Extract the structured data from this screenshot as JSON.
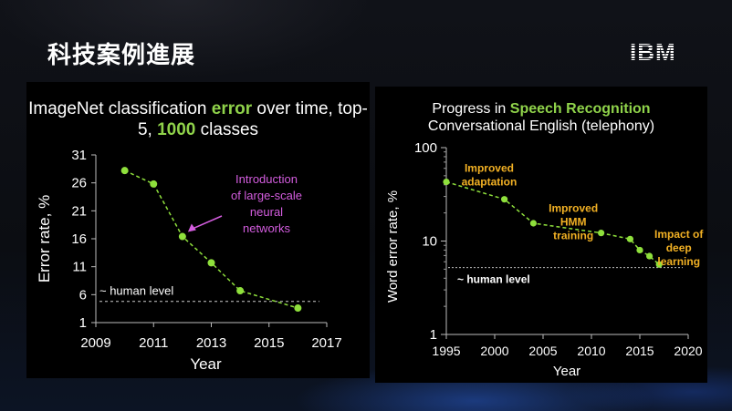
{
  "slide": {
    "title": "科技案例進展",
    "logo_text": "IBM"
  },
  "colors": {
    "series": "#8fe03c",
    "left_annotation": "#d45ddf",
    "right_annotation": "#f2b124",
    "highlight": "#8fd24a"
  },
  "chart_data": [
    {
      "type": "line",
      "title_parts": [
        "ImageNet classification ",
        "error",
        " over time, top-5, ",
        "1000",
        " classes"
      ],
      "xlabel": "Year",
      "ylabel": "Error rate, %",
      "xlim": [
        2009,
        2017
      ],
      "ylim": [
        1,
        31
      ],
      "xticks": [
        2009,
        2011,
        2013,
        2015,
        2017
      ],
      "yticks": [
        1,
        6,
        11,
        16,
        21,
        26,
        31
      ],
      "x": [
        2010,
        2011,
        2012,
        2013,
        2014,
        2016
      ],
      "y": [
        28.2,
        25.8,
        16.4,
        11.7,
        6.7,
        3.6
      ],
      "human_level": 4.8,
      "human_label": "~ human level",
      "annotation": "Introduction\nof large-scale\nneural\nnetworks",
      "annotation_target": [
        2012,
        16.4
      ]
    },
    {
      "type": "line",
      "title_plain": "Progress in ",
      "title_highlight": "Speech Recognition",
      "subtitle": "Conversational English (telephony)",
      "xlabel": "Year",
      "ylabel": "Word error rate, %",
      "xlim": [
        1995,
        2020
      ],
      "ylim": [
        1,
        100
      ],
      "yscale": "log",
      "xticks": [
        1995,
        2000,
        2005,
        2010,
        2015,
        2020
      ],
      "yticks": [
        1,
        10,
        100
      ],
      "x": [
        1995,
        2001,
        2004,
        2011,
        2014,
        2015,
        2016,
        2017
      ],
      "y": [
        43,
        28,
        15.5,
        12.2,
        10.5,
        8.0,
        6.9,
        5.6
      ],
      "human_level": 5.2,
      "human_label": "~ human level",
      "annotations": [
        {
          "text": "Improved\nadaptation",
          "x": 1996.6,
          "y": 55
        },
        {
          "text": "Improved\nHMM\ntraining",
          "x": 2005.3,
          "y": 20.5
        },
        {
          "text": "Impact of\ndeep\nlearning",
          "x": 2016.2,
          "y": 10.8
        }
      ]
    }
  ]
}
